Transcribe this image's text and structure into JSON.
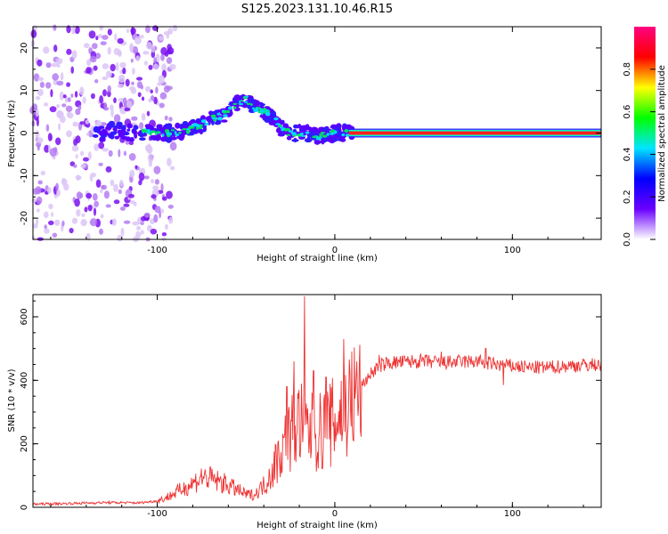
{
  "figure_title": "S125.2023.131.10.46.R15",
  "chart_data": [
    {
      "type": "heatmap",
      "title": "",
      "xlabel": "Height of straight line (km)",
      "ylabel": "Frequency (Hz)",
      "xlim": [
        -170,
        150
      ],
      "ylim": [
        -25,
        25
      ],
      "x_ticks": [
        "-100",
        "0",
        "100"
      ],
      "x_tick_values": [
        -100,
        0,
        100
      ],
      "y_ticks": [
        "-20",
        "-10",
        "0",
        "10",
        "20"
      ],
      "y_tick_values": [
        -20,
        -10,
        0,
        10,
        20
      ],
      "colorbar": {
        "label": "Normalized spectral amplitude",
        "range": [
          0,
          1
        ],
        "ticks": [
          "0.0",
          "0.2",
          "0.4",
          "0.6",
          "0.8"
        ],
        "tick_values": [
          0.0,
          0.2,
          0.4,
          0.6,
          0.8
        ],
        "colormap": [
          "#ffffff",
          "#6a00ff",
          "#0000ff",
          "#00e5ff",
          "#00ff00",
          "#ffff00",
          "#ff0000",
          "#ff0080"
        ]
      },
      "ridge": {
        "x": [
          -130,
          -115,
          -100,
          -90,
          -80,
          -75,
          -70,
          -65,
          -60,
          -55,
          -50,
          -45,
          -40,
          -35,
          -30,
          -25,
          -20,
          -15,
          -10,
          -5,
          0,
          5,
          10,
          50,
          100,
          150
        ],
        "y": [
          1,
          0,
          0,
          0,
          1,
          2,
          3,
          4,
          5,
          7,
          8,
          6,
          5,
          4,
          1,
          0,
          0,
          0,
          -1,
          0,
          0,
          0,
          0,
          0,
          0,
          0
        ]
      },
      "noise_region": [
        -170,
        -100
      ],
      "dominant_frequency_hz": 0
    },
    {
      "type": "line",
      "title": "",
      "xlabel": "Height of straight line (km)",
      "ylabel": "SNR (10 * v/v)",
      "xlim": [
        -170,
        150
      ],
      "ylim": [
        0,
        670
      ],
      "x_ticks": [
        "-100",
        "0",
        "100"
      ],
      "x_tick_values": [
        -100,
        0,
        100
      ],
      "y_ticks": [
        "0",
        "200",
        "400",
        "600"
      ],
      "y_tick_values": [
        0,
        200,
        400,
        600
      ],
      "color": "#ee3333",
      "series": [
        {
          "x": [
            -170,
            -150,
            -130,
            -110,
            -100,
            -95,
            -90,
            -85,
            -80,
            -75,
            -70,
            -65,
            -60,
            -55,
            -50,
            -45,
            -40,
            -35,
            -30,
            -25,
            -20,
            -15,
            -10,
            -5,
            0,
            5,
            10,
            15,
            20,
            25,
            30,
            40,
            50,
            60,
            70,
            80,
            90,
            100,
            110,
            120,
            130,
            140,
            150
          ],
          "values": [
            10,
            12,
            15,
            14,
            20,
            30,
            45,
            60,
            75,
            95,
            90,
            80,
            70,
            55,
            40,
            40,
            70,
            120,
            180,
            230,
            270,
            240,
            230,
            250,
            270,
            310,
            340,
            380,
            420,
            445,
            455,
            458,
            460,
            455,
            458,
            460,
            450,
            445,
            440,
            440,
            445,
            448,
            450
          ]
        }
      ],
      "peak": {
        "x": -17,
        "value": 665
      },
      "spikes": [
        {
          "x": -27,
          "value": 380
        },
        {
          "x": -23,
          "value": 460
        },
        {
          "x": -12,
          "value": 430
        },
        {
          "x": -5,
          "value": 410
        },
        {
          "x": 5,
          "value": 530
        },
        {
          "x": 25,
          "value": 480
        },
        {
          "x": 60,
          "value": 490
        },
        {
          "x": 85,
          "value": 500
        },
        {
          "x": 95,
          "value": 385
        }
      ]
    }
  ]
}
